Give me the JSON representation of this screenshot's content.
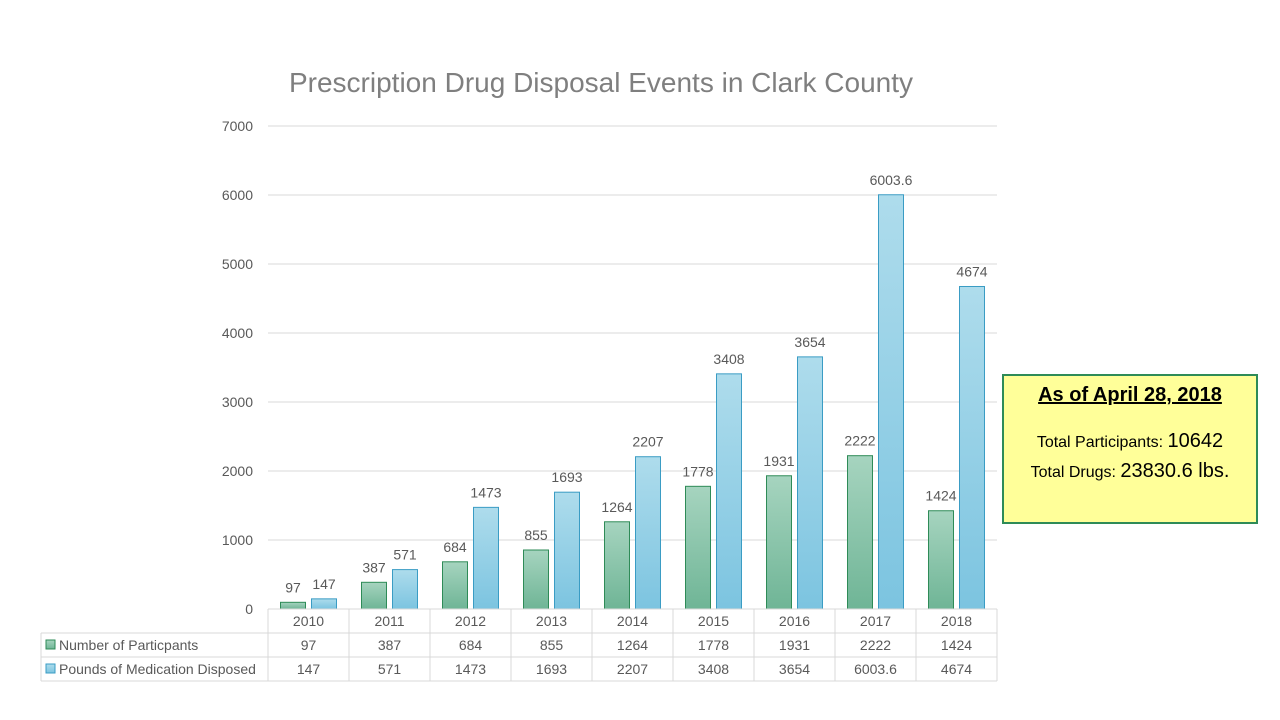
{
  "chart_data": {
    "type": "bar",
    "title": "Prescription Drug Disposal Events in Clark County",
    "categories": [
      "2010",
      "2011",
      "2012",
      "2013",
      "2014",
      "2015",
      "2016",
      "2017",
      "2018"
    ],
    "series": [
      {
        "name": "Number of Particpants",
        "values": [
          97,
          387,
          684,
          855,
          1264,
          1778,
          1931,
          2222,
          1424
        ],
        "labels": [
          "97",
          "387",
          "684",
          "855",
          "1264",
          "1778",
          "1931",
          "2222",
          "1424"
        ],
        "color_top": "#a6d4bf",
        "color_bottom": "#6fb596",
        "stroke": "#2e8b57"
      },
      {
        "name": "Pounds of Medication Disposed",
        "values": [
          147,
          571,
          1473,
          1693,
          2207,
          3408,
          3654,
          6003.6,
          4674
        ],
        "labels": [
          "147",
          "571",
          "1473",
          "1693",
          "2207",
          "3408",
          "3654",
          "6003.6",
          "4674"
        ],
        "color_top": "#aedcec",
        "color_bottom": "#7cc4e0",
        "stroke": "#3a9cc4"
      }
    ],
    "yticks": [
      "0",
      "1000",
      "2000",
      "3000",
      "4000",
      "5000",
      "6000",
      "7000"
    ],
    "ylim": [
      0,
      7000
    ],
    "grid": true,
    "data_table": true
  },
  "info_box": {
    "title": "As of April 28, 2018",
    "participants_label": "Total Participants: ",
    "participants_value": "10642",
    "drugs_label": "Total Drugs: ",
    "drugs_value": "23830.6 lbs."
  }
}
